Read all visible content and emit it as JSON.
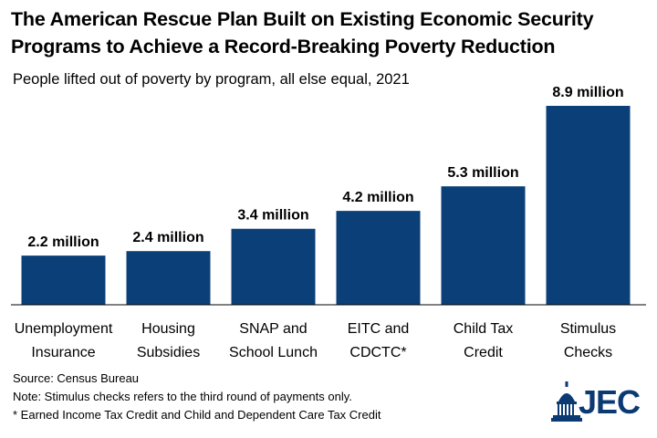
{
  "title_line1": "The American Rescue Plan Built on Existing Economic Security",
  "title_line2": "Programs to Achieve a Record-Breaking Poverty Reduction",
  "subtitle": "People lifted out of poverty by program, all else equal, 2021",
  "notes": {
    "source": "Source: Census Bureau",
    "note": "Note: Stimulus checks refers to the third round of payments only.",
    "footnote": "* Earned Income Tax Credit and Child and Dependent Care Tax Credit"
  },
  "logo": {
    "text": "JEC",
    "icon": "capitol-dome-icon"
  },
  "colors": {
    "bar": "#0b3f78",
    "axis": "#000000"
  },
  "chart_data": {
    "type": "bar",
    "categories": [
      [
        "Unemployment",
        "Insurance"
      ],
      [
        "Housing",
        "Subsidies"
      ],
      [
        "SNAP and",
        "School Lunch"
      ],
      [
        "EITC and",
        "CDCTC*"
      ],
      [
        "Child Tax",
        "Credit"
      ],
      [
        "Stimulus",
        "Checks"
      ]
    ],
    "values": [
      2.2,
      2.4,
      3.4,
      4.2,
      5.3,
      8.9
    ],
    "data_labels": [
      "2.2 million",
      "2.4 million",
      "3.4 million",
      "4.2 million",
      "5.3 million",
      "8.9 million"
    ],
    "unit": "million",
    "ylim": [
      0,
      9
    ],
    "grid": false,
    "legend": "none"
  }
}
